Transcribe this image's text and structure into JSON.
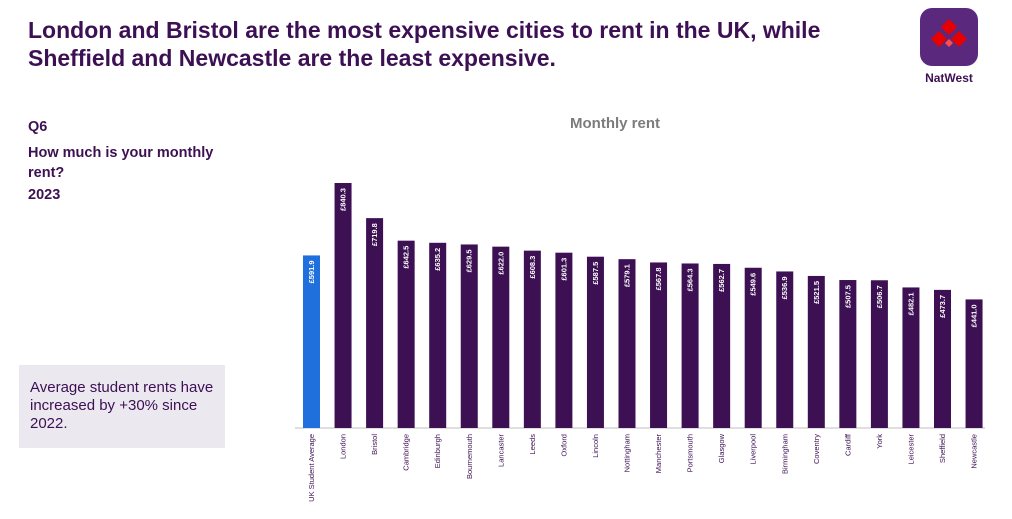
{
  "header": {
    "title": "London and Bristol are the most expensive cities to rent in the UK, while Sheffield and Newcastle are the least expensive."
  },
  "brand": {
    "name": "NatWest",
    "colors": {
      "primary": "#5a287d",
      "accent": "#e60000",
      "text": "#3c1053"
    }
  },
  "question": {
    "id": "Q6",
    "text": "How much is your monthly rent?",
    "year": "2023"
  },
  "note": {
    "text": "Average student rents have increased by +30% since 2022."
  },
  "chart_data": {
    "type": "bar",
    "title": "Monthly rent",
    "xlabel": "",
    "ylabel": "",
    "ylim": [
      0,
      840.3
    ],
    "grid": false,
    "categories": [
      "UK Student Average",
      "London",
      "Bristol",
      "Cambridge",
      "Edinburgh",
      "Bournemouth",
      "Lancaster",
      "Leeds",
      "Oxford",
      "Lincoln",
      "Nottingham",
      "Manchester",
      "Portsmouth",
      "Glasgow",
      "Liverpool",
      "Birmingham",
      "Coventry",
      "Cardiff",
      "York",
      "Leicester",
      "Sheffield",
      "Newcastle"
    ],
    "values": [
      591.9,
      840.3,
      719.8,
      642.5,
      635.2,
      629.5,
      622.0,
      608.3,
      601.3,
      587.5,
      579.1,
      567.8,
      564.3,
      562.7,
      549.6,
      536.9,
      521.5,
      507.5,
      506.7,
      482.1,
      473.7,
      441.0
    ],
    "labels": [
      "£591.9",
      "£840.3",
      "£719.8",
      "£642.5",
      "£635.2",
      "£629.5",
      "£622.0",
      "£608.3",
      "£601.3",
      "£587.5",
      "£579.1",
      "£567.8",
      "£564.3",
      "£562.7",
      "£549.6",
      "£536.9",
      "£521.5",
      "£507.5",
      "£506.7",
      "£482.1",
      "£473.7",
      "£441.0"
    ],
    "bar_colors": {
      "highlight": "#1f6fdc",
      "default": "#3c1053"
    }
  }
}
